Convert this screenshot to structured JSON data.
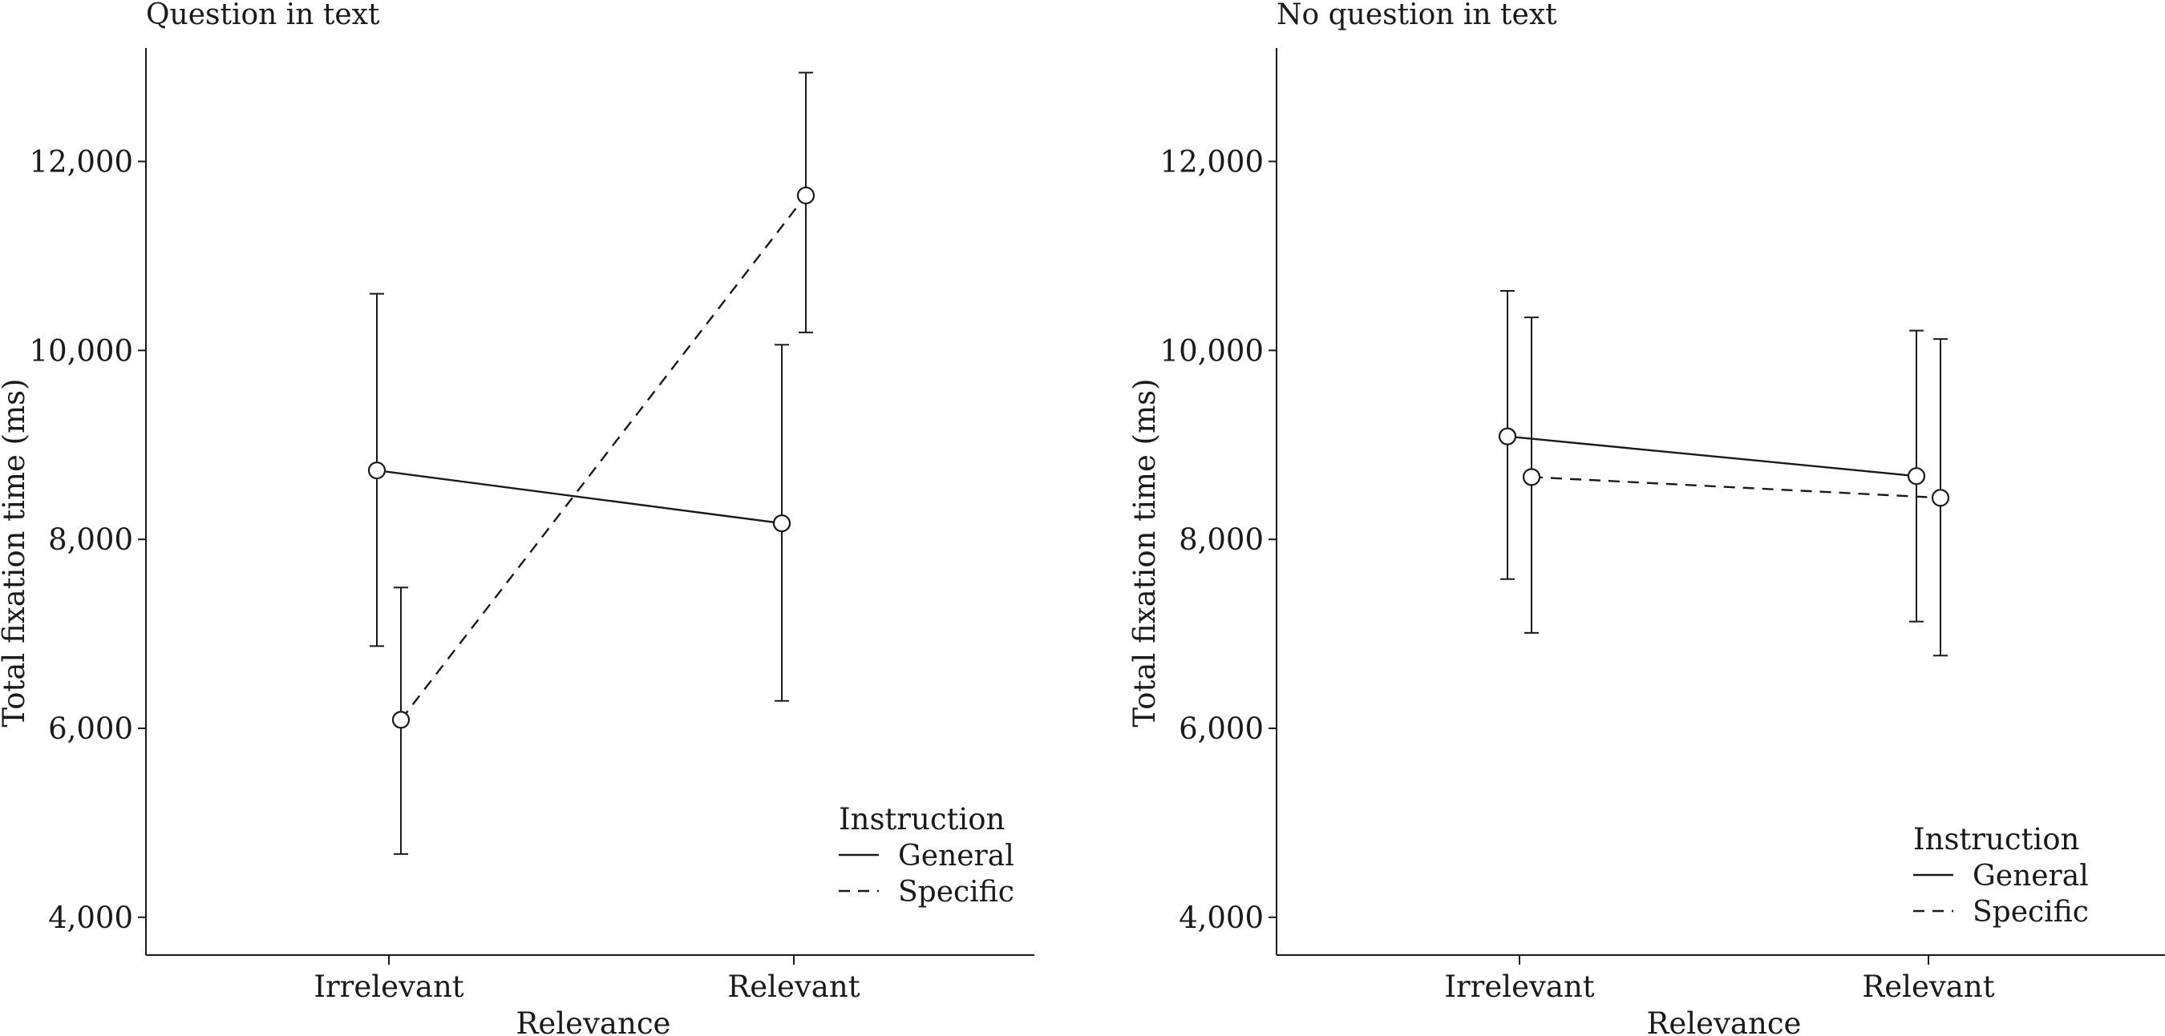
{
  "chart_data": [
    {
      "type": "line",
      "title": "Question in text",
      "xlabel": "Relevance",
      "ylabel": "Total fixation time (ms)",
      "categories": [
        "Irrelevant",
        "Relevant"
      ],
      "yticks": [
        4000,
        6000,
        8000,
        10000,
        12000
      ],
      "ytick_labels": [
        "4,000",
        "6,000",
        "8,000",
        "10,000",
        "12,000"
      ],
      "ylim": [
        3600,
        13200
      ],
      "legend": {
        "title": "Instruction",
        "position": "bottom-right"
      },
      "series": [
        {
          "name": "General",
          "style": "solid",
          "values": [
            8730,
            8170
          ],
          "error_low": [
            6870,
            6290
          ],
          "error_high": [
            10600,
            10060
          ]
        },
        {
          "name": "Specific",
          "style": "dashed",
          "values": [
            6090,
            11640
          ],
          "error_low": [
            4670,
            10190
          ],
          "error_high": [
            7490,
            12940
          ]
        }
      ]
    },
    {
      "type": "line",
      "title": "No question in text",
      "xlabel": "Relevance",
      "ylabel": "Total fixation time (ms)",
      "categories": [
        "Irrelevant",
        "Relevant"
      ],
      "yticks": [
        4000,
        6000,
        8000,
        10000,
        12000
      ],
      "ytick_labels": [
        "4,000",
        "6,000",
        "8,000",
        "10,000",
        "12,000"
      ],
      "ylim": [
        3600,
        13200
      ],
      "legend": {
        "title": "Instruction",
        "position": "bottom-right"
      },
      "series": [
        {
          "name": "General",
          "style": "solid",
          "values": [
            9090,
            8670
          ],
          "error_low": [
            7580,
            7130
          ],
          "error_high": [
            10630,
            10210
          ]
        },
        {
          "name": "Specific",
          "style": "dashed",
          "values": [
            8660,
            8440
          ],
          "error_low": [
            7010,
            6770
          ],
          "error_high": [
            10350,
            10120
          ]
        }
      ]
    }
  ],
  "colors": {
    "ink": "#1a1a1a",
    "marker_fill": "#ffffff",
    "background": "#ffffff"
  }
}
